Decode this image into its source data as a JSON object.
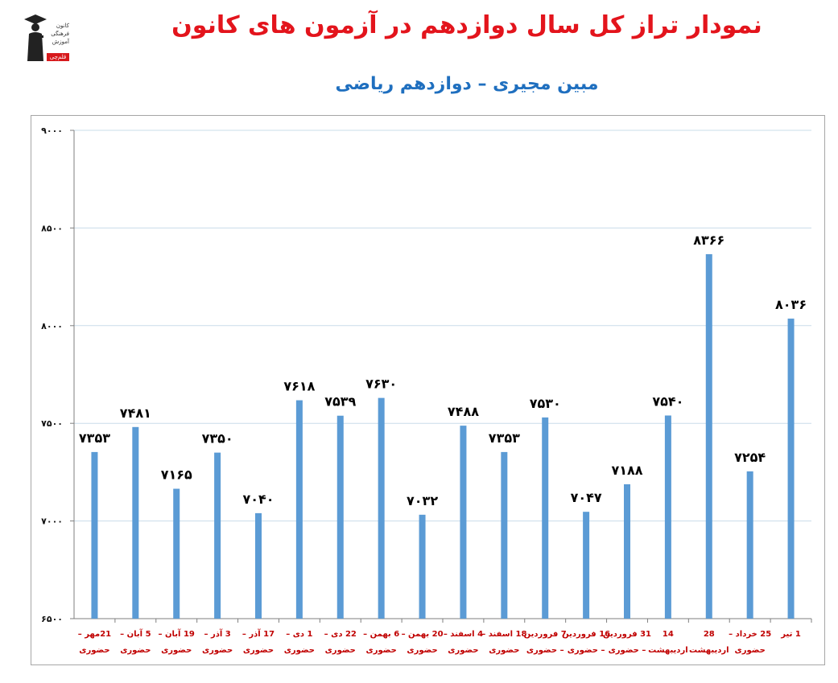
{
  "title": "نمودار تراز کل سال دوازدهم در آزمون های کانون",
  "subtitle": "مبین مجیری – دوازدهم ریاضی",
  "logo": {
    "lines": [
      "کانون",
      "فرهنگی",
      "آموزش"
    ],
    "badge": "قلم‌چی",
    "icon": "graduate-icon"
  },
  "colors": {
    "bar": "#5b9bd5",
    "title": "#e3141c",
    "subtitle": "#1f6fbf",
    "category_text": "#c00000",
    "grid": "#c9dcea"
  },
  "chart_data": {
    "type": "bar",
    "title": "نمودار تراز کل سال دوازدهم در آزمون های کانون",
    "subtitle": "مبین مجیری – دوازدهم ریاضی",
    "ylim": [
      6500,
      9000
    ],
    "yticks": [
      6500,
      7000,
      7500,
      8000,
      8500,
      9000
    ],
    "ytick_labels": [
      "۶۵۰۰",
      "۷۰۰۰",
      "۷۵۰۰",
      "۸۰۰۰",
      "۸۵۰۰",
      "۹۰۰۰"
    ],
    "grid": true,
    "categories": [
      [
        "21مهر –",
        "حضوری"
      ],
      [
        "5 آبان –",
        "حضوری"
      ],
      [
        "19 آبان –",
        "حضوری"
      ],
      [
        "3 آذر –",
        "حضوری"
      ],
      [
        "17 آذر –",
        "حضوری"
      ],
      [
        "1 دی –",
        "حضوری"
      ],
      [
        "22 دی –",
        "حضوری"
      ],
      [
        "6 بهمن –",
        "حضوری"
      ],
      [
        "20 بهمن –",
        "حضوری"
      ],
      [
        "4 اسفند –",
        "حضوری"
      ],
      [
        "18 اسفند –",
        "حضوری"
      ],
      [
        "7 فروردین",
        "– حضوری"
      ],
      [
        "16 فروردین",
        "– حضوری"
      ],
      [
        "31 فروردین",
        "– حضوری"
      ],
      [
        "14",
        "اردیبهشت"
      ],
      [
        "28",
        "اردیبهشت"
      ],
      [
        "25 خرداد –",
        "حضوری"
      ],
      [
        "1 تیر",
        ""
      ]
    ],
    "values": [
      7353,
      7481,
      7165,
      7350,
      7040,
      7618,
      7539,
      7630,
      7032,
      7488,
      7353,
      7530,
      7047,
      7188,
      7540,
      8366,
      7254,
      8036
    ],
    "data_labels": [
      "۷۳۵۳",
      "۷۴۸۱",
      "۷۱۶۵",
      "۷۳۵۰",
      "۷۰۴۰",
      "۷۶۱۸",
      "۷۵۳۹",
      "۷۶۳۰",
      "۷۰۳۲",
      "۷۴۸۸",
      "۷۳۵۳",
      "۷۵۳۰",
      "۷۰۴۷",
      "۷۱۸۸",
      "۷۵۴۰",
      "۸۳۶۶",
      "۷۲۵۴",
      "۸۰۳۶"
    ]
  }
}
